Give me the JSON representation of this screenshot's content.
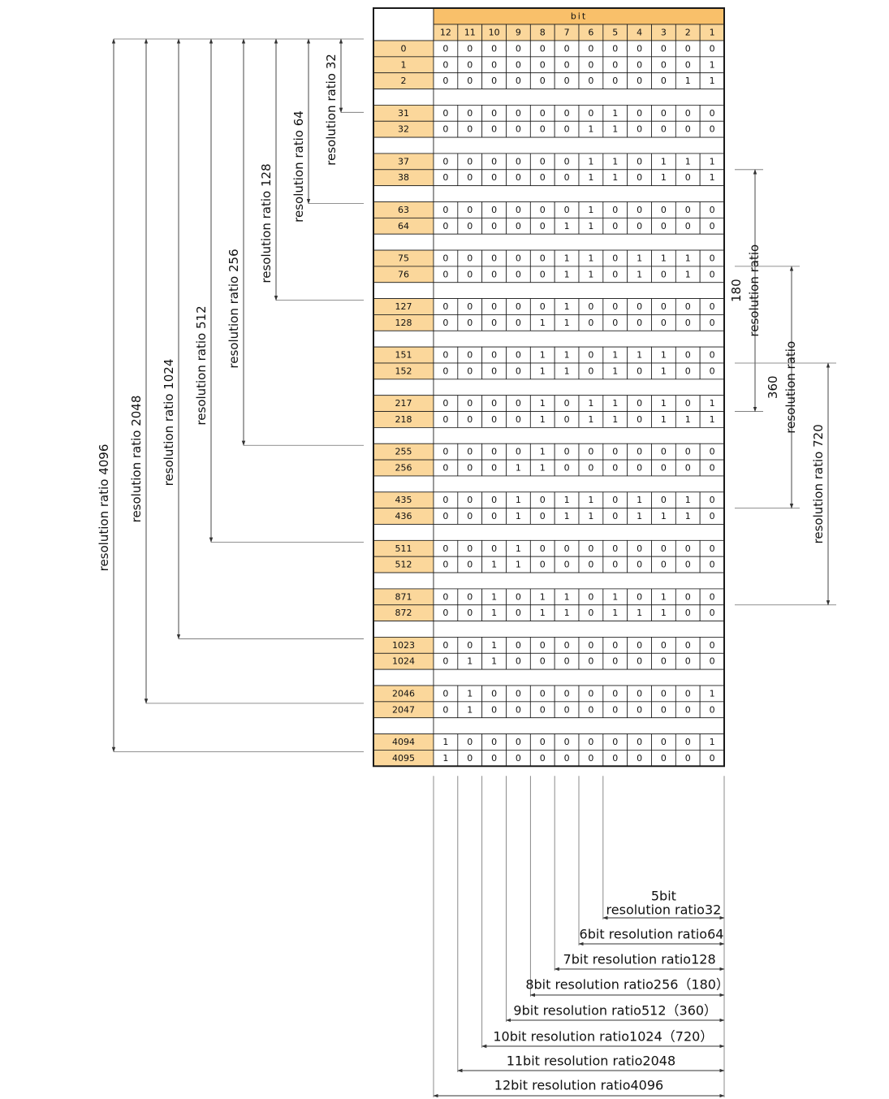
{
  "table": {
    "bit_header": "bit",
    "bit_columns": [
      "12",
      "11",
      "10",
      "9",
      "8",
      "7",
      "6",
      "5",
      "4",
      "3",
      "2",
      "1"
    ],
    "rows": [
      {
        "num": "0",
        "bits": [
          "0",
          "0",
          "0",
          "0",
          "0",
          "0",
          "0",
          "0",
          "0",
          "0",
          "0",
          "0"
        ]
      },
      {
        "num": "1",
        "bits": [
          "0",
          "0",
          "0",
          "0",
          "0",
          "0",
          "0",
          "0",
          "0",
          "0",
          "0",
          "1"
        ]
      },
      {
        "num": "2",
        "bits": [
          "0",
          "0",
          "0",
          "0",
          "0",
          "0",
          "0",
          "0",
          "0",
          "0",
          "1",
          "1"
        ]
      },
      {
        "num": "",
        "bits": []
      },
      {
        "num": "31",
        "bits": [
          "0",
          "0",
          "0",
          "0",
          "0",
          "0",
          "0",
          "1",
          "0",
          "0",
          "0",
          "0"
        ]
      },
      {
        "num": "32",
        "bits": [
          "0",
          "0",
          "0",
          "0",
          "0",
          "0",
          "1",
          "1",
          "0",
          "0",
          "0",
          "0"
        ]
      },
      {
        "num": "",
        "bits": []
      },
      {
        "num": "37",
        "bits": [
          "0",
          "0",
          "0",
          "0",
          "0",
          "0",
          "1",
          "1",
          "0",
          "1",
          "1",
          "1"
        ]
      },
      {
        "num": "38",
        "bits": [
          "0",
          "0",
          "0",
          "0",
          "0",
          "0",
          "1",
          "1",
          "0",
          "1",
          "0",
          "1"
        ]
      },
      {
        "num": "",
        "bits": []
      },
      {
        "num": "63",
        "bits": [
          "0",
          "0",
          "0",
          "0",
          "0",
          "0",
          "1",
          "0",
          "0",
          "0",
          "0",
          "0"
        ]
      },
      {
        "num": "64",
        "bits": [
          "0",
          "0",
          "0",
          "0",
          "0",
          "1",
          "1",
          "0",
          "0",
          "0",
          "0",
          "0"
        ]
      },
      {
        "num": "",
        "bits": []
      },
      {
        "num": "75",
        "bits": [
          "0",
          "0",
          "0",
          "0",
          "0",
          "1",
          "1",
          "0",
          "1",
          "1",
          "1",
          "0"
        ]
      },
      {
        "num": "76",
        "bits": [
          "0",
          "0",
          "0",
          "0",
          "0",
          "1",
          "1",
          "0",
          "1",
          "0",
          "1",
          "0"
        ]
      },
      {
        "num": "",
        "bits": []
      },
      {
        "num": "127",
        "bits": [
          "0",
          "0",
          "0",
          "0",
          "0",
          "1",
          "0",
          "0",
          "0",
          "0",
          "0",
          "0"
        ]
      },
      {
        "num": "128",
        "bits": [
          "0",
          "0",
          "0",
          "0",
          "1",
          "1",
          "0",
          "0",
          "0",
          "0",
          "0",
          "0"
        ]
      },
      {
        "num": "",
        "bits": []
      },
      {
        "num": "151",
        "bits": [
          "0",
          "0",
          "0",
          "0",
          "1",
          "1",
          "0",
          "1",
          "1",
          "1",
          "0",
          "0"
        ]
      },
      {
        "num": "152",
        "bits": [
          "0",
          "0",
          "0",
          "0",
          "1",
          "1",
          "0",
          "1",
          "0",
          "1",
          "0",
          "0"
        ]
      },
      {
        "num": "",
        "bits": []
      },
      {
        "num": "217",
        "bits": [
          "0",
          "0",
          "0",
          "0",
          "1",
          "0",
          "1",
          "1",
          "0",
          "1",
          "0",
          "1"
        ]
      },
      {
        "num": "218",
        "bits": [
          "0",
          "0",
          "0",
          "0",
          "1",
          "0",
          "1",
          "1",
          "0",
          "1",
          "1",
          "1"
        ]
      },
      {
        "num": "",
        "bits": []
      },
      {
        "num": "255",
        "bits": [
          "0",
          "0",
          "0",
          "0",
          "1",
          "0",
          "0",
          "0",
          "0",
          "0",
          "0",
          "0"
        ]
      },
      {
        "num": "256",
        "bits": [
          "0",
          "0",
          "0",
          "1",
          "1",
          "0",
          "0",
          "0",
          "0",
          "0",
          "0",
          "0"
        ]
      },
      {
        "num": "",
        "bits": []
      },
      {
        "num": "435",
        "bits": [
          "0",
          "0",
          "0",
          "1",
          "0",
          "1",
          "1",
          "0",
          "1",
          "0",
          "1",
          "0"
        ]
      },
      {
        "num": "436",
        "bits": [
          "0",
          "0",
          "0",
          "1",
          "0",
          "1",
          "1",
          "0",
          "1",
          "1",
          "1",
          "0"
        ]
      },
      {
        "num": "",
        "bits": []
      },
      {
        "num": "511",
        "bits": [
          "0",
          "0",
          "0",
          "1",
          "0",
          "0",
          "0",
          "0",
          "0",
          "0",
          "0",
          "0"
        ]
      },
      {
        "num": "512",
        "bits": [
          "0",
          "0",
          "1",
          "1",
          "0",
          "0",
          "0",
          "0",
          "0",
          "0",
          "0",
          "0"
        ]
      },
      {
        "num": "",
        "bits": []
      },
      {
        "num": "871",
        "bits": [
          "0",
          "0",
          "1",
          "0",
          "1",
          "1",
          "0",
          "1",
          "0",
          "1",
          "0",
          "0"
        ]
      },
      {
        "num": "872",
        "bits": [
          "0",
          "0",
          "1",
          "0",
          "1",
          "1",
          "0",
          "1",
          "1",
          "1",
          "0",
          "0"
        ]
      },
      {
        "num": "",
        "bits": []
      },
      {
        "num": "1023",
        "bits": [
          "0",
          "0",
          "1",
          "0",
          "0",
          "0",
          "0",
          "0",
          "0",
          "0",
          "0",
          "0"
        ]
      },
      {
        "num": "1024",
        "bits": [
          "0",
          "1",
          "1",
          "0",
          "0",
          "0",
          "0",
          "0",
          "0",
          "0",
          "0",
          "0"
        ]
      },
      {
        "num": "",
        "bits": []
      },
      {
        "num": "2046",
        "bits": [
          "0",
          "1",
          "0",
          "0",
          "0",
          "0",
          "0",
          "0",
          "0",
          "0",
          "0",
          "1"
        ]
      },
      {
        "num": "2047",
        "bits": [
          "0",
          "1",
          "0",
          "0",
          "0",
          "0",
          "0",
          "0",
          "0",
          "0",
          "0",
          "0"
        ]
      },
      {
        "num": "",
        "bits": []
      },
      {
        "num": "4094",
        "bits": [
          "1",
          "0",
          "0",
          "0",
          "0",
          "0",
          "0",
          "0",
          "0",
          "0",
          "0",
          "1"
        ]
      },
      {
        "num": "4095",
        "bits": [
          "1",
          "0",
          "0",
          "0",
          "0",
          "0",
          "0",
          "0",
          "0",
          "0",
          "0",
          "0"
        ]
      }
    ]
  },
  "left_ranges": [
    {
      "lines": [
        "resolution ratio 32"
      ],
      "end_row": "31"
    },
    {
      "lines": [
        "resolution ratio 64"
      ],
      "end_row": "63"
    },
    {
      "lines": [
        "resolution ratio 128"
      ],
      "end_row": "127"
    },
    {
      "lines": [
        "resolution ratio 256"
      ],
      "end_row": "255"
    },
    {
      "lines": [
        "resolution ratio 512"
      ],
      "end_row": "511"
    },
    {
      "lines": [
        "resolution ratio 1024"
      ],
      "end_row": "1023"
    },
    {
      "lines": [
        "resolution ratio 2048"
      ],
      "end_row": "2047"
    },
    {
      "lines": [
        "resolution ratio 4096"
      ],
      "end_row": "4095"
    }
  ],
  "right_ranges": [
    {
      "lines": [
        "180",
        "resolution ratio"
      ],
      "start_row": "38",
      "end_row": "217"
    },
    {
      "lines": [
        "360",
        "resolution ratio"
      ],
      "start_row": "76",
      "end_row": "435"
    },
    {
      "lines": [
        "resolution ratio 720"
      ],
      "start_row": "152",
      "end_row": "871"
    }
  ],
  "bottom_ranges": [
    {
      "lines": [
        "5bit",
        "resolution ratio32"
      ],
      "from_bit": "5"
    },
    {
      "lines": [
        "6bit resolution ratio64"
      ],
      "from_bit": "6"
    },
    {
      "lines": [
        "7bit resolution ratio128"
      ],
      "from_bit": "7"
    },
    {
      "lines": [
        "8bit resolution ratio256（180）"
      ],
      "from_bit": "8"
    },
    {
      "lines": [
        "9bit resolution ratio512（360）"
      ],
      "from_bit": "9"
    },
    {
      "lines": [
        "10bit resolution ratio1024（720）"
      ],
      "from_bit": "10"
    },
    {
      "lines": [
        "11bit resolution ratio2048"
      ],
      "from_bit": "11"
    },
    {
      "lines": [
        "12bit resolution ratio4096"
      ],
      "from_bit": "12"
    }
  ],
  "colors": {
    "accent": "#fbd79b",
    "header": "#f9c06a",
    "line": "#1a1a1a",
    "guide": "#6e6e6e"
  }
}
